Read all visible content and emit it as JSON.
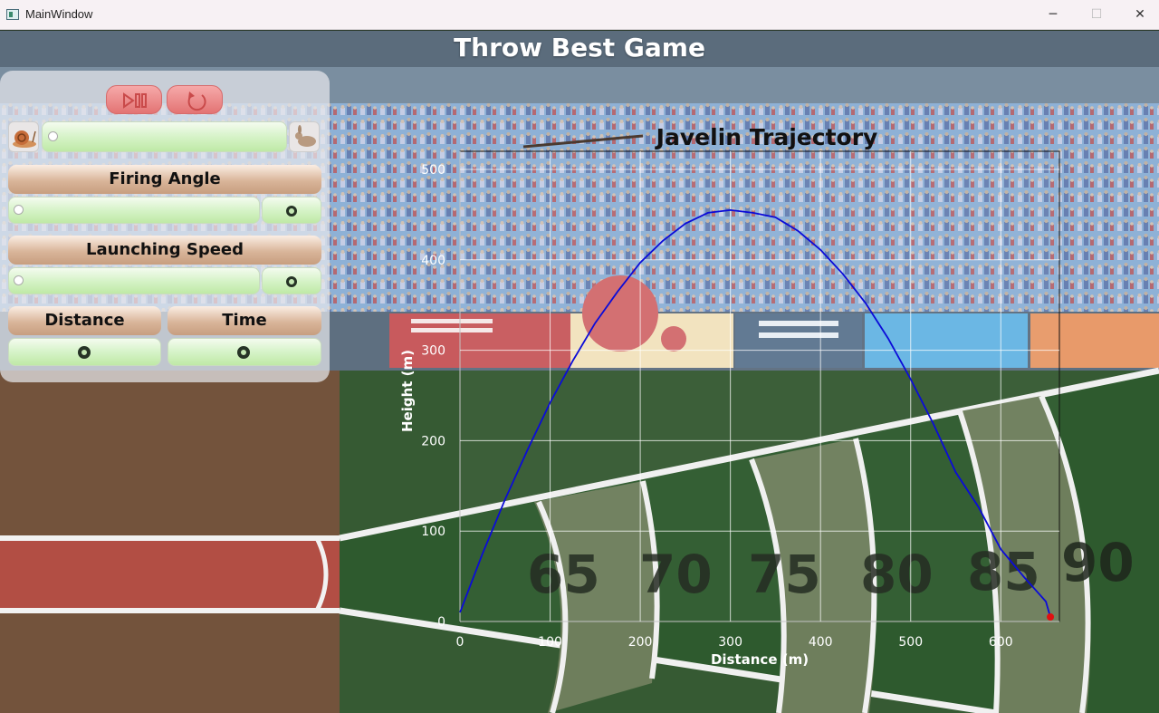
{
  "window": {
    "title": "MainWindow",
    "minimize": "─",
    "maximize": "☐",
    "close": "✕"
  },
  "game": {
    "title": "Throw Best Game"
  },
  "panel": {
    "play_pause_icon": "play-pause-icon",
    "reset_icon": "reset-icon",
    "speed_slow_icon": "snail-icon",
    "speed_fast_icon": "rabbit-icon",
    "firing_angle_label": "Firing Angle",
    "launching_speed_label": "Launching Speed",
    "distance_label": "Distance",
    "time_label": "Time",
    "speed_slider_value": 0,
    "angle_slider_value": 0,
    "launch_slider_value": 0
  },
  "field_markers": [
    "65",
    "70",
    "75",
    "80",
    "85",
    "90"
  ],
  "colors": {
    "trajectory": "#0b0bd8",
    "landing": "#e01010",
    "panel_button": "#e37474"
  },
  "chart_data": {
    "type": "line",
    "title": "Javelin Trajectory",
    "xlabel": "Distance (m)",
    "ylabel": "Height (m)",
    "xlim": [
      0,
      665
    ],
    "ylim": [
      0,
      520
    ],
    "x_ticks": [
      0,
      100,
      200,
      300,
      400,
      500,
      600
    ],
    "y_ticks": [
      0,
      100,
      200,
      300,
      400,
      500
    ],
    "grid": true,
    "series": [
      {
        "x": [
          0,
          25,
          50,
          75,
          100,
          125,
          150,
          175,
          200,
          225,
          250,
          275,
          300,
          325,
          350,
          375,
          400,
          425,
          450,
          475,
          500,
          525,
          550,
          575,
          600,
          625,
          650,
          655
        ],
        "y": [
          10,
          75,
          135,
          190,
          242,
          288,
          330,
          365,
          397,
          421,
          440,
          452,
          455,
          452,
          447,
          432,
          411,
          384,
          352,
          313,
          268,
          219,
          165,
          127,
          80,
          50,
          22,
          5
        ]
      }
    ],
    "landing_point": {
      "x": 655,
      "y": 5
    }
  }
}
